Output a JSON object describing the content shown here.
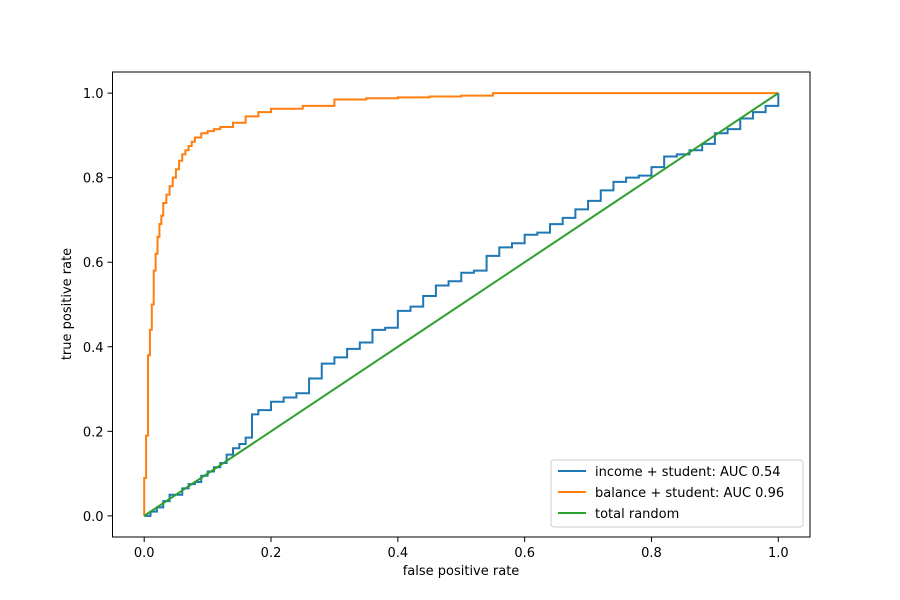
{
  "chart_data": {
    "type": "line",
    "title": "",
    "xlabel": "false positive rate",
    "ylabel": "true positive rate",
    "xlim": [
      -0.05,
      1.05
    ],
    "ylim": [
      -0.05,
      1.05
    ],
    "xticks": [
      "0.0",
      "0.2",
      "0.4",
      "0.6",
      "0.8",
      "1.0"
    ],
    "yticks": [
      "0.0",
      "0.2",
      "0.4",
      "0.6",
      "0.8",
      "1.0"
    ],
    "grid": false,
    "legend_position": "lower-right",
    "series": [
      {
        "name": "income + student: AUC 0.54",
        "color": "#1f77b4",
        "step": true,
        "x": [
          0.0,
          0.01,
          0.02,
          0.03,
          0.04,
          0.05,
          0.06,
          0.07,
          0.08,
          0.09,
          0.1,
          0.11,
          0.12,
          0.13,
          0.14,
          0.15,
          0.16,
          0.17,
          0.18,
          0.2,
          0.22,
          0.24,
          0.26,
          0.28,
          0.3,
          0.32,
          0.34,
          0.36,
          0.38,
          0.4,
          0.42,
          0.44,
          0.46,
          0.48,
          0.5,
          0.52,
          0.54,
          0.56,
          0.58,
          0.6,
          0.62,
          0.64,
          0.66,
          0.68,
          0.7,
          0.72,
          0.74,
          0.76,
          0.78,
          0.8,
          0.82,
          0.84,
          0.86,
          0.88,
          0.9,
          0.92,
          0.94,
          0.96,
          0.98,
          1.0
        ],
        "y": [
          0.0,
          0.01,
          0.02,
          0.035,
          0.05,
          0.05,
          0.065,
          0.075,
          0.08,
          0.095,
          0.105,
          0.115,
          0.125,
          0.145,
          0.16,
          0.17,
          0.185,
          0.24,
          0.25,
          0.27,
          0.28,
          0.29,
          0.325,
          0.36,
          0.375,
          0.395,
          0.41,
          0.44,
          0.445,
          0.485,
          0.495,
          0.52,
          0.545,
          0.555,
          0.575,
          0.58,
          0.615,
          0.635,
          0.645,
          0.665,
          0.67,
          0.69,
          0.705,
          0.725,
          0.745,
          0.77,
          0.79,
          0.8,
          0.805,
          0.825,
          0.85,
          0.855,
          0.865,
          0.88,
          0.905,
          0.915,
          0.94,
          0.955,
          0.97,
          1.0
        ]
      },
      {
        "name": "balance + student: AUC 0.96",
        "color": "#ff7f0e",
        "step": true,
        "x": [
          0.0,
          0.0,
          0.003,
          0.006,
          0.009,
          0.012,
          0.015,
          0.018,
          0.021,
          0.024,
          0.027,
          0.03,
          0.035,
          0.04,
          0.045,
          0.05,
          0.055,
          0.06,
          0.065,
          0.07,
          0.075,
          0.08,
          0.09,
          0.1,
          0.11,
          0.12,
          0.14,
          0.16,
          0.18,
          0.2,
          0.25,
          0.3,
          0.35,
          0.4,
          0.45,
          0.5,
          0.55,
          1.0
        ],
        "y": [
          0.0,
          0.09,
          0.19,
          0.38,
          0.44,
          0.5,
          0.58,
          0.62,
          0.66,
          0.69,
          0.71,
          0.74,
          0.76,
          0.78,
          0.8,
          0.82,
          0.84,
          0.855,
          0.865,
          0.875,
          0.885,
          0.895,
          0.905,
          0.91,
          0.915,
          0.92,
          0.93,
          0.945,
          0.955,
          0.963,
          0.97,
          0.985,
          0.988,
          0.99,
          0.992,
          0.994,
          1.0,
          1.0
        ]
      },
      {
        "name": "total random",
        "color": "#2ca02c",
        "step": false,
        "x": [
          0.0,
          1.0
        ],
        "y": [
          0.0,
          1.0
        ]
      }
    ]
  }
}
